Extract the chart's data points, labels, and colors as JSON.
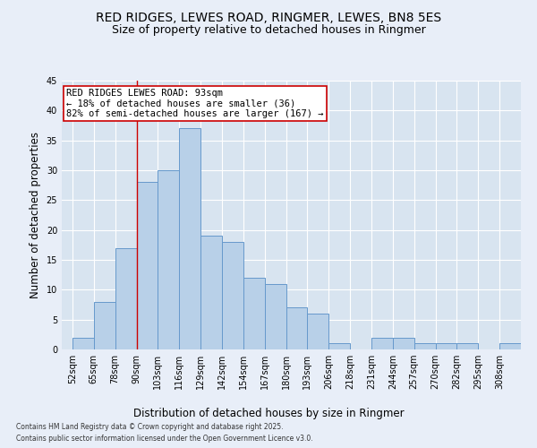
{
  "title1": "RED RIDGES, LEWES ROAD, RINGMER, LEWES, BN8 5ES",
  "title2": "Size of property relative to detached houses in Ringmer",
  "xlabel": "Distribution of detached houses by size in Ringmer",
  "ylabel": "Number of detached properties",
  "categories": [
    "52sqm",
    "65sqm",
    "78sqm",
    "90sqm",
    "103sqm",
    "116sqm",
    "129sqm",
    "142sqm",
    "154sqm",
    "167sqm",
    "180sqm",
    "193sqm",
    "206sqm",
    "218sqm",
    "231sqm",
    "244sqm",
    "257sqm",
    "270sqm",
    "282sqm",
    "295sqm",
    "308sqm"
  ],
  "values": [
    2,
    8,
    17,
    28,
    30,
    37,
    19,
    18,
    12,
    11,
    7,
    6,
    1,
    0,
    2,
    2,
    1,
    1,
    1,
    0,
    1
  ],
  "bar_color": "#b8d0e8",
  "bar_edge_color": "#6699cc",
  "vline_color": "#cc0000",
  "annotation_text": "RED RIDGES LEWES ROAD: 93sqm\n← 18% of detached houses are smaller (36)\n82% of semi-detached houses are larger (167) →",
  "annotation_box_color": "#ffffff",
  "annotation_box_edge": "#cc0000",
  "ylim": [
    0,
    45
  ],
  "yticks": [
    0,
    5,
    10,
    15,
    20,
    25,
    30,
    35,
    40,
    45
  ],
  "background_color": "#e8eef8",
  "plot_bg_color": "#d8e4f0",
  "grid_color": "#ffffff",
  "footer1": "Contains HM Land Registry data © Crown copyright and database right 2025.",
  "footer2": "Contains public sector information licensed under the Open Government Licence v3.0.",
  "title_fontsize": 10,
  "subtitle_fontsize": 9,
  "axis_label_fontsize": 8.5,
  "tick_fontsize": 7,
  "annotation_fontsize": 7.5,
  "bin_width": 13,
  "vline_bin_index": 3
}
